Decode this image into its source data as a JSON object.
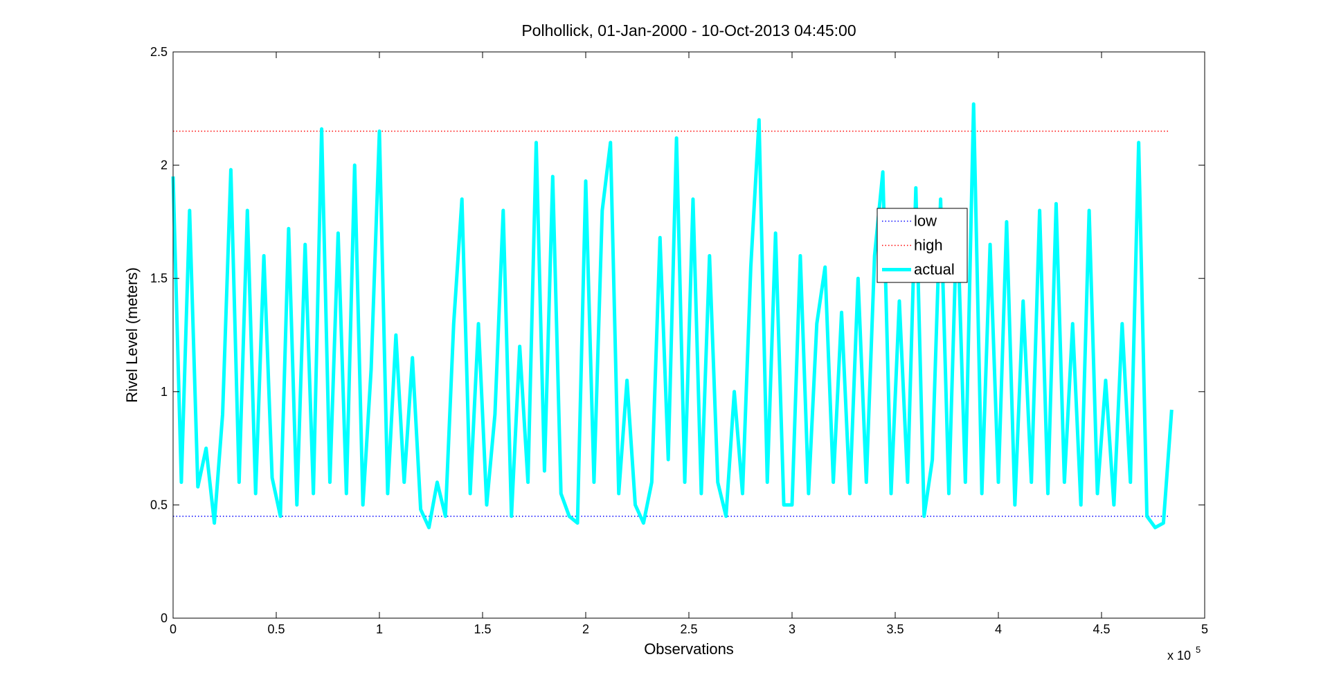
{
  "chart_data": {
    "type": "line",
    "title": "Polhollick, 01-Jan-2000 - 10-Oct-2013 04:45:00",
    "x_label": "Observations",
    "y_label": "Rivel Level (meters)",
    "x_multiplier": "x 10",
    "x_multiplier_exponent": "5",
    "xlim": [
      0,
      500000
    ],
    "ylim": [
      0,
      2.5
    ],
    "xticks": [
      0,
      {
        "value": 50000,
        "label": "0.5"
      },
      {
        "value": 100000,
        "label": "1"
      },
      {
        "value": 150000,
        "label": "1.5"
      },
      {
        "value": 200000,
        "label": "2"
      },
      {
        "value": 250000,
        "label": "2.5"
      },
      {
        "value": 300000,
        "label": "3"
      },
      {
        "value": 350000,
        "label": "3.5"
      },
      {
        "value": 400000,
        "label": "4"
      },
      {
        "value": 450000,
        "label": "4.5"
      },
      {
        "value": 500000,
        "label": "5"
      }
    ],
    "yticks": [
      0,
      0.5,
      1,
      1.5,
      2,
      2.5
    ],
    "grid": false,
    "legend_position": "upper-center-right",
    "series": [
      {
        "name": "low",
        "color": "#0000ff",
        "style": "dotted",
        "x": [
          0,
          483000
        ],
        "values": [
          0.45,
          0.45
        ]
      },
      {
        "name": "high",
        "color": "#ff0000",
        "style": "dotted",
        "x": [
          0,
          483000
        ],
        "values": [
          2.15,
          2.15
        ]
      },
      {
        "name": "actual",
        "color": "#00ffff",
        "style": "solid",
        "x": [
          0,
          4000,
          8000,
          12000,
          16000,
          20000,
          24000,
          28000,
          32000,
          36000,
          40000,
          44000,
          48000,
          52000,
          56000,
          60000,
          64000,
          68000,
          72000,
          76000,
          80000,
          84000,
          88000,
          92000,
          96000,
          100000,
          104000,
          108000,
          112000,
          116000,
          120000,
          124000,
          128000,
          132000,
          136000,
          140000,
          144000,
          148000,
          152000,
          156000,
          160000,
          164000,
          168000,
          172000,
          176000,
          180000,
          184000,
          188000,
          192000,
          196000,
          200000,
          204000,
          208000,
          212000,
          216000,
          220000,
          224000,
          228000,
          232000,
          236000,
          240000,
          244000,
          248000,
          252000,
          256000,
          260000,
          264000,
          268000,
          272000,
          276000,
          280000,
          284000,
          288000,
          292000,
          296000,
          300000,
          304000,
          308000,
          312000,
          316000,
          320000,
          324000,
          328000,
          332000,
          336000,
          340000,
          344000,
          348000,
          352000,
          356000,
          360000,
          364000,
          368000,
          372000,
          376000,
          380000,
          384000,
          388000,
          392000,
          396000,
          400000,
          404000,
          408000,
          412000,
          416000,
          420000,
          424000,
          428000,
          432000,
          436000,
          440000,
          444000,
          448000,
          452000,
          456000,
          460000,
          464000,
          468000,
          472000,
          476000,
          480000,
          484000
        ],
        "values": [
          1.95,
          0.6,
          1.8,
          0.58,
          0.75,
          0.42,
          0.9,
          1.98,
          0.6,
          1.8,
          0.55,
          1.6,
          0.62,
          0.45,
          1.72,
          0.5,
          1.65,
          0.55,
          2.16,
          0.6,
          1.7,
          0.55,
          2.0,
          0.5,
          1.1,
          2.15,
          0.55,
          1.25,
          0.6,
          1.15,
          0.48,
          0.4,
          0.6,
          0.45,
          1.3,
          1.85,
          0.55,
          1.3,
          0.5,
          0.9,
          1.8,
          0.45,
          1.2,
          0.6,
          2.1,
          0.65,
          1.95,
          0.55,
          0.45,
          0.42,
          1.93,
          0.6,
          1.8,
          2.1,
          0.55,
          1.05,
          0.5,
          0.42,
          0.6,
          1.68,
          0.7,
          2.12,
          0.6,
          1.85,
          0.55,
          1.6,
          0.6,
          0.45,
          1.0,
          0.55,
          1.55,
          2.2,
          0.6,
          1.7,
          0.5,
          0.5,
          1.6,
          0.55,
          1.3,
          1.55,
          0.6,
          1.35,
          0.55,
          1.5,
          0.6,
          1.6,
          1.97,
          0.55,
          1.4,
          0.6,
          1.9,
          0.45,
          0.7,
          1.85,
          0.55,
          1.8,
          0.6,
          2.27,
          0.55,
          1.65,
          0.6,
          1.75,
          0.5,
          1.4,
          0.6,
          1.8,
          0.55,
          1.83,
          0.6,
          1.3,
          0.5,
          1.8,
          0.55,
          1.05,
          0.5,
          1.3,
          0.6,
          2.1,
          0.45,
          0.4,
          0.42,
          0.92
        ]
      }
    ]
  }
}
